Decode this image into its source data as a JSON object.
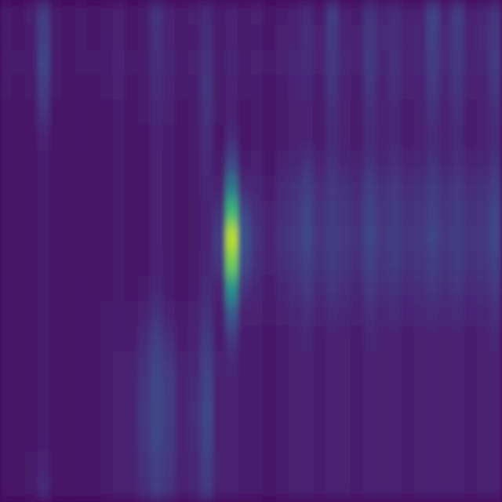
{
  "chart_data": {
    "type": "heatmap",
    "color": "viridis",
    "tick_labels": false,
    "color_range": [
      0,
      1
    ],
    "cells": [
      [
        0.08,
        0.06,
        0.09,
        0.18,
        0.07,
        0.05,
        0.08,
        0.06,
        0.07,
        0.09,
        0.06,
        0.08,
        0.15,
        0.1,
        0.07,
        0.09,
        0.12,
        0.08,
        0.1,
        0.07,
        0.09,
        0.06,
        0.08,
        0.1,
        0.12,
        0.08,
        0.18,
        0.1,
        0.08,
        0.15,
        0.11,
        0.13,
        0.09,
        0.1,
        0.2,
        0.11,
        0.18,
        0.09,
        0.11,
        0.15
      ],
      [
        0.07,
        0.06,
        0.08,
        0.19,
        0.07,
        0.06,
        0.07,
        0.06,
        0.08,
        0.09,
        0.06,
        0.07,
        0.14,
        0.1,
        0.07,
        0.08,
        0.13,
        0.07,
        0.1,
        0.07,
        0.08,
        0.06,
        0.09,
        0.1,
        0.13,
        0.09,
        0.17,
        0.1,
        0.09,
        0.16,
        0.12,
        0.13,
        0.1,
        0.11,
        0.19,
        0.12,
        0.17,
        0.1,
        0.12,
        0.16
      ],
      [
        0.08,
        0.07,
        0.08,
        0.2,
        0.08,
        0.06,
        0.07,
        0.07,
        0.08,
        0.1,
        0.07,
        0.08,
        0.13,
        0.11,
        0.08,
        0.09,
        0.14,
        0.08,
        0.11,
        0.08,
        0.09,
        0.07,
        0.09,
        0.11,
        0.12,
        0.09,
        0.16,
        0.11,
        0.09,
        0.17,
        0.11,
        0.14,
        0.1,
        0.11,
        0.18,
        0.12,
        0.16,
        0.1,
        0.11,
        0.17
      ],
      [
        0.07,
        0.06,
        0.07,
        0.18,
        0.07,
        0.05,
        0.06,
        0.06,
        0.07,
        0.09,
        0.06,
        0.07,
        0.12,
        0.1,
        0.07,
        0.08,
        0.15,
        0.07,
        0.1,
        0.07,
        0.08,
        0.06,
        0.08,
        0.1,
        0.11,
        0.08,
        0.15,
        0.1,
        0.08,
        0.15,
        0.1,
        0.13,
        0.09,
        0.1,
        0.16,
        0.11,
        0.15,
        0.09,
        0.1,
        0.15
      ],
      [
        0.06,
        0.05,
        0.06,
        0.14,
        0.06,
        0.05,
        0.06,
        0.05,
        0.06,
        0.08,
        0.05,
        0.07,
        0.11,
        0.09,
        0.06,
        0.07,
        0.14,
        0.07,
        0.09,
        0.06,
        0.07,
        0.05,
        0.07,
        0.09,
        0.1,
        0.07,
        0.13,
        0.09,
        0.07,
        0.13,
        0.09,
        0.11,
        0.08,
        0.09,
        0.14,
        0.1,
        0.13,
        0.08,
        0.09,
        0.13
      ],
      [
        0.06,
        0.05,
        0.06,
        0.1,
        0.06,
        0.05,
        0.06,
        0.05,
        0.06,
        0.07,
        0.05,
        0.06,
        0.1,
        0.08,
        0.06,
        0.07,
        0.13,
        0.06,
        0.12,
        0.06,
        0.07,
        0.05,
        0.07,
        0.09,
        0.1,
        0.07,
        0.12,
        0.09,
        0.07,
        0.12,
        0.09,
        0.11,
        0.08,
        0.09,
        0.12,
        0.09,
        0.12,
        0.08,
        0.09,
        0.12
      ],
      [
        0.06,
        0.05,
        0.06,
        0.08,
        0.06,
        0.05,
        0.05,
        0.05,
        0.06,
        0.07,
        0.05,
        0.06,
        0.09,
        0.08,
        0.06,
        0.07,
        0.12,
        0.07,
        0.2,
        0.08,
        0.09,
        0.06,
        0.09,
        0.11,
        0.14,
        0.1,
        0.14,
        0.11,
        0.09,
        0.14,
        0.11,
        0.13,
        0.1,
        0.11,
        0.14,
        0.11,
        0.13,
        0.1,
        0.11,
        0.14
      ],
      [
        0.05,
        0.05,
        0.06,
        0.07,
        0.06,
        0.05,
        0.05,
        0.05,
        0.06,
        0.07,
        0.05,
        0.06,
        0.09,
        0.07,
        0.06,
        0.07,
        0.11,
        0.09,
        0.4,
        0.12,
        0.11,
        0.08,
        0.12,
        0.14,
        0.18,
        0.13,
        0.16,
        0.14,
        0.12,
        0.18,
        0.14,
        0.16,
        0.13,
        0.14,
        0.17,
        0.14,
        0.16,
        0.13,
        0.14,
        0.18
      ],
      [
        0.05,
        0.05,
        0.06,
        0.07,
        0.06,
        0.05,
        0.05,
        0.05,
        0.06,
        0.07,
        0.05,
        0.06,
        0.09,
        0.07,
        0.06,
        0.07,
        0.1,
        0.14,
        0.68,
        0.2,
        0.13,
        0.09,
        0.13,
        0.15,
        0.2,
        0.14,
        0.17,
        0.15,
        0.13,
        0.2,
        0.15,
        0.17,
        0.14,
        0.15,
        0.19,
        0.15,
        0.17,
        0.14,
        0.15,
        0.2
      ],
      [
        0.05,
        0.05,
        0.06,
        0.07,
        0.06,
        0.05,
        0.05,
        0.05,
        0.06,
        0.07,
        0.05,
        0.06,
        0.1,
        0.07,
        0.06,
        0.07,
        0.1,
        0.18,
        0.9,
        0.25,
        0.14,
        0.1,
        0.14,
        0.16,
        0.21,
        0.15,
        0.18,
        0.16,
        0.14,
        0.21,
        0.16,
        0.18,
        0.15,
        0.16,
        0.2,
        0.16,
        0.18,
        0.15,
        0.16,
        0.21
      ],
      [
        0.05,
        0.05,
        0.06,
        0.07,
        0.06,
        0.05,
        0.05,
        0.05,
        0.06,
        0.07,
        0.05,
        0.06,
        0.1,
        0.08,
        0.06,
        0.07,
        0.11,
        0.15,
        0.78,
        0.22,
        0.13,
        0.09,
        0.13,
        0.15,
        0.19,
        0.14,
        0.17,
        0.15,
        0.13,
        0.19,
        0.15,
        0.17,
        0.14,
        0.15,
        0.18,
        0.15,
        0.17,
        0.14,
        0.15,
        0.19
      ],
      [
        0.06,
        0.05,
        0.06,
        0.07,
        0.06,
        0.05,
        0.06,
        0.05,
        0.06,
        0.07,
        0.06,
        0.07,
        0.11,
        0.08,
        0.06,
        0.08,
        0.12,
        0.1,
        0.5,
        0.14,
        0.11,
        0.08,
        0.11,
        0.13,
        0.16,
        0.12,
        0.15,
        0.13,
        0.11,
        0.16,
        0.13,
        0.14,
        0.12,
        0.13,
        0.15,
        0.13,
        0.15,
        0.12,
        0.13,
        0.16
      ],
      [
        0.06,
        0.05,
        0.06,
        0.07,
        0.06,
        0.05,
        0.06,
        0.06,
        0.07,
        0.08,
        0.07,
        0.09,
        0.14,
        0.1,
        0.07,
        0.09,
        0.14,
        0.08,
        0.28,
        0.09,
        0.09,
        0.07,
        0.09,
        0.11,
        0.13,
        0.1,
        0.12,
        0.11,
        0.09,
        0.13,
        0.11,
        0.12,
        0.1,
        0.11,
        0.12,
        0.11,
        0.12,
        0.1,
        0.11,
        0.13
      ],
      [
        0.06,
        0.05,
        0.06,
        0.07,
        0.06,
        0.05,
        0.06,
        0.06,
        0.07,
        0.08,
        0.08,
        0.12,
        0.18,
        0.13,
        0.08,
        0.1,
        0.17,
        0.08,
        0.15,
        0.08,
        0.08,
        0.06,
        0.08,
        0.09,
        0.11,
        0.08,
        0.1,
        0.09,
        0.08,
        0.11,
        0.09,
        0.1,
        0.08,
        0.09,
        0.1,
        0.09,
        0.1,
        0.08,
        0.09,
        0.11
      ],
      [
        0.06,
        0.05,
        0.06,
        0.07,
        0.06,
        0.05,
        0.06,
        0.06,
        0.07,
        0.09,
        0.09,
        0.14,
        0.2,
        0.16,
        0.09,
        0.11,
        0.19,
        0.09,
        0.11,
        0.08,
        0.08,
        0.06,
        0.08,
        0.09,
        0.1,
        0.08,
        0.1,
        0.09,
        0.08,
        0.1,
        0.09,
        0.1,
        0.08,
        0.09,
        0.1,
        0.09,
        0.1,
        0.08,
        0.09,
        0.1
      ],
      [
        0.06,
        0.05,
        0.06,
        0.07,
        0.06,
        0.05,
        0.06,
        0.06,
        0.07,
        0.09,
        0.1,
        0.15,
        0.21,
        0.18,
        0.1,
        0.12,
        0.2,
        0.09,
        0.1,
        0.08,
        0.08,
        0.06,
        0.08,
        0.09,
        0.1,
        0.08,
        0.1,
        0.09,
        0.08,
        0.1,
        0.09,
        0.1,
        0.08,
        0.09,
        0.1,
        0.09,
        0.1,
        0.08,
        0.09,
        0.1
      ],
      [
        0.06,
        0.05,
        0.06,
        0.07,
        0.06,
        0.05,
        0.06,
        0.06,
        0.07,
        0.09,
        0.1,
        0.16,
        0.22,
        0.18,
        0.1,
        0.13,
        0.21,
        0.09,
        0.1,
        0.08,
        0.08,
        0.06,
        0.08,
        0.09,
        0.1,
        0.08,
        0.1,
        0.09,
        0.08,
        0.1,
        0.09,
        0.1,
        0.08,
        0.09,
        0.1,
        0.09,
        0.1,
        0.08,
        0.09,
        0.1
      ],
      [
        0.06,
        0.05,
        0.06,
        0.08,
        0.06,
        0.05,
        0.06,
        0.06,
        0.07,
        0.09,
        0.1,
        0.15,
        0.21,
        0.17,
        0.1,
        0.12,
        0.2,
        0.09,
        0.1,
        0.08,
        0.08,
        0.06,
        0.08,
        0.09,
        0.1,
        0.08,
        0.1,
        0.09,
        0.08,
        0.1,
        0.09,
        0.1,
        0.08,
        0.09,
        0.1,
        0.09,
        0.1,
        0.08,
        0.09,
        0.1
      ],
      [
        0.06,
        0.05,
        0.07,
        0.1,
        0.06,
        0.05,
        0.06,
        0.06,
        0.07,
        0.09,
        0.09,
        0.14,
        0.19,
        0.16,
        0.09,
        0.11,
        0.18,
        0.09,
        0.1,
        0.08,
        0.08,
        0.06,
        0.08,
        0.09,
        0.1,
        0.08,
        0.1,
        0.09,
        0.08,
        0.1,
        0.09,
        0.1,
        0.08,
        0.09,
        0.1,
        0.09,
        0.1,
        0.08,
        0.09,
        0.1
      ],
      [
        0.06,
        0.05,
        0.07,
        0.12,
        0.06,
        0.05,
        0.06,
        0.06,
        0.07,
        0.09,
        0.09,
        0.13,
        0.18,
        0.15,
        0.09,
        0.11,
        0.17,
        0.09,
        0.1,
        0.08,
        0.08,
        0.06,
        0.08,
        0.09,
        0.1,
        0.08,
        0.1,
        0.09,
        0.08,
        0.1,
        0.09,
        0.1,
        0.08,
        0.09,
        0.1,
        0.09,
        0.1,
        0.08,
        0.09,
        0.1
      ]
    ]
  }
}
